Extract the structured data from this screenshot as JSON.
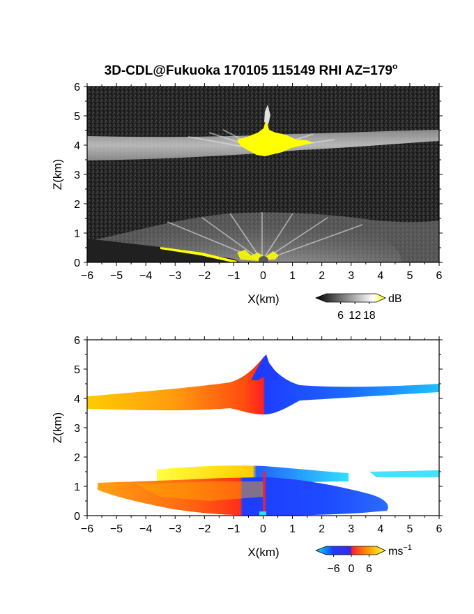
{
  "page_title": "3D-CDL@Fukuoka 170105 115149 RHI AZ=179",
  "title_superscript": "o",
  "chart_data": [
    {
      "type": "heatmap",
      "title": "3D-CDL@Fukuoka 170105 115149 RHI AZ=179°",
      "xlabel": "X(km)",
      "ylabel": "Z(km)",
      "xlim": [
        -6,
        6
      ],
      "ylim": [
        0,
        6
      ],
      "x_ticks": [
        "−6",
        "−5",
        "−4",
        "−3",
        "−2",
        "−1",
        "0",
        "1",
        "2",
        "3",
        "4",
        "5",
        "6"
      ],
      "y_ticks": [
        "0",
        "1",
        "2",
        "3",
        "4",
        "5",
        "6"
      ],
      "colorbar": {
        "unit": "dB",
        "tick_labels": [
          "6",
          "12",
          "18"
        ],
        "ticks": [
          6,
          12,
          18
        ],
        "colors": [
          "#000000",
          "#ffffff",
          "#ffff00"
        ]
      },
      "features": [
        {
          "label": "cloud layer",
          "z_km": [
            3.6,
            4.4
          ],
          "x_km": [
            -6,
            6
          ]
        },
        {
          "label": "saturated core",
          "z_km": [
            3.6,
            4.4
          ],
          "x_km": [
            -0.9,
            1.8
          ]
        },
        {
          "label": "boundary layer",
          "z_km": [
            0,
            1.5
          ],
          "x_km": [
            -6,
            6
          ]
        }
      ]
    },
    {
      "type": "heatmap",
      "xlabel": "X(km)",
      "ylabel": "Z(km)",
      "xlim": [
        -6,
        6
      ],
      "ylim": [
        0,
        6
      ],
      "x_ticks": [
        "−6",
        "−5",
        "−4",
        "−3",
        "−2",
        "−1",
        "0",
        "1",
        "2",
        "3",
        "4",
        "5",
        "6"
      ],
      "y_ticks": [
        "0",
        "1",
        "2",
        "3",
        "4",
        "5",
        "6"
      ],
      "colorbar": {
        "unit": "ms",
        "unit_superscript": "−1",
        "tick_labels": [
          "−6",
          "0",
          "6"
        ],
        "ticks": [
          -6,
          0,
          6
        ],
        "colors": [
          "#00e5ff",
          "#1e3cff",
          "#ff2020",
          "#ff9900",
          "#ffff33"
        ]
      },
      "features": [
        {
          "label": "cloud layer",
          "z_km": [
            3.6,
            4.4
          ],
          "x_km": [
            -6,
            6
          ]
        },
        {
          "label": "boundary layer",
          "z_km": [
            0,
            1.6
          ],
          "x_km": [
            -5.5,
            4.5
          ]
        }
      ]
    }
  ]
}
